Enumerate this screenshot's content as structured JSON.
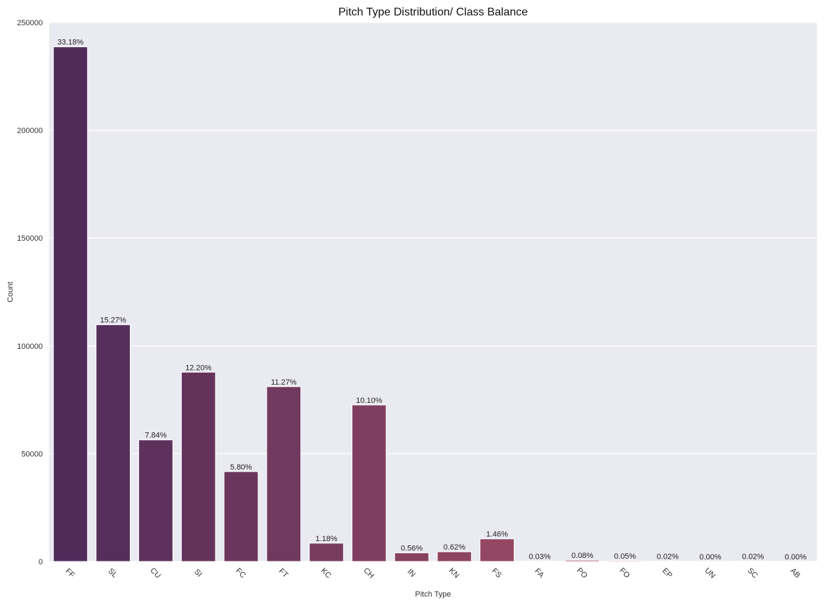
{
  "chart_data": {
    "type": "bar",
    "title": "Pitch Type Distribution/ Class Balance",
    "xlabel": "Pitch Type",
    "ylabel": "Count",
    "ylim": [
      0,
      250000
    ],
    "yticks": [
      0,
      50000,
      100000,
      150000,
      200000,
      250000
    ],
    "grid": true,
    "categories": [
      "FF",
      "SL",
      "CU",
      "SI",
      "FC",
      "FT",
      "KC",
      "CH",
      "IN",
      "KN",
      "FS",
      "FA",
      "PO",
      "FO",
      "EP",
      "UN",
      "SC",
      "AB"
    ],
    "values": [
      238700,
      109800,
      56400,
      87800,
      41700,
      81100,
      8500,
      72600,
      4000,
      4500,
      10500,
      200,
      600,
      400,
      150,
      20,
      150,
      10
    ],
    "labels": [
      "33.18%",
      "15.27%",
      "7.84%",
      "12.20%",
      "5.80%",
      "11.27%",
      "1.18%",
      "10.10%",
      "0.56%",
      "0.62%",
      "1.46%",
      "0.03%",
      "0.08%",
      "0.05%",
      "0.02%",
      "0.00%",
      "0.02%",
      "0.00%"
    ],
    "colors": {
      "background": "#eaeaf2",
      "grid": "#ffffff",
      "bar_start": "#4f2b5a",
      "bar_end": "#c45a68"
    }
  }
}
